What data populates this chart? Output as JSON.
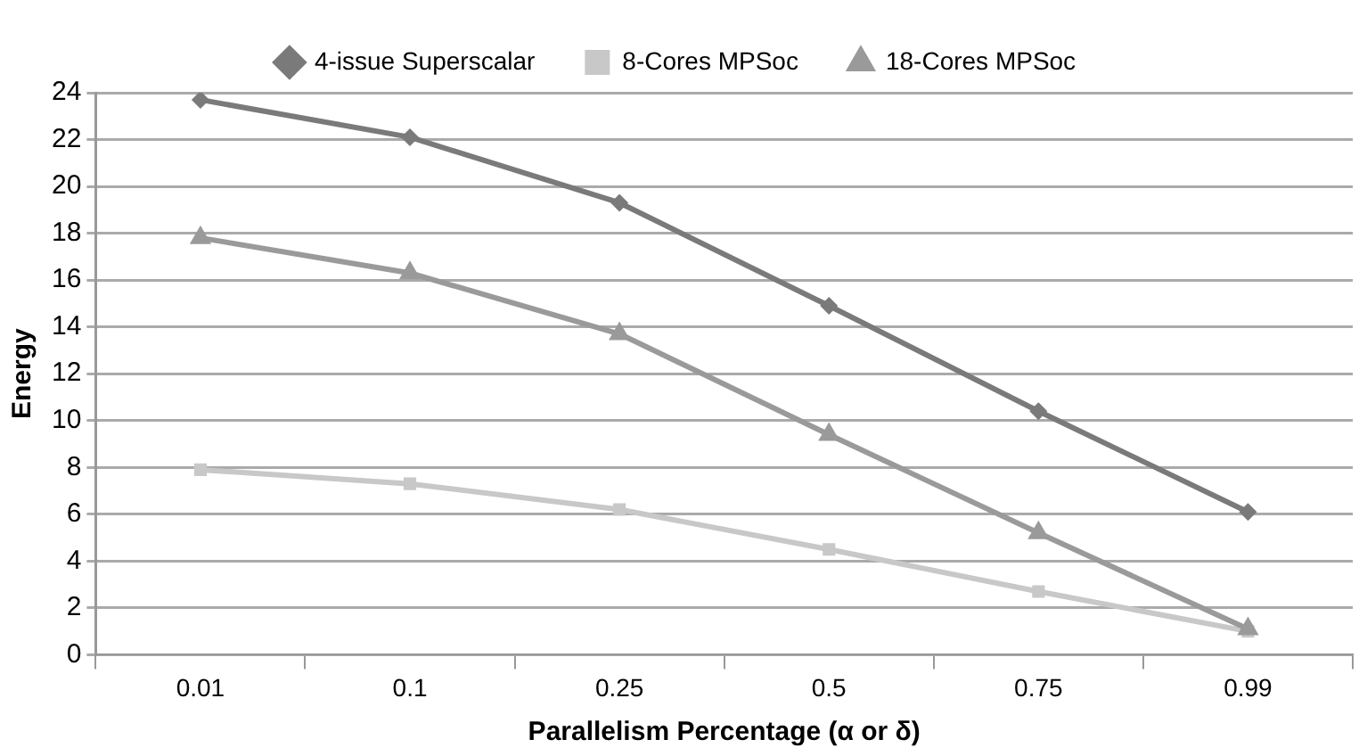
{
  "chart_data": {
    "type": "line",
    "xlabel": "Parallelism Percentage (α or δ)",
    "ylabel": "Energy",
    "categories": [
      "0.01",
      "0.1",
      "0.25",
      "0.5",
      "0.75",
      "0.99"
    ],
    "series": [
      {
        "name": "4-issue Superscalar",
        "color": "#7a7a7a",
        "marker": "diamond",
        "values": [
          23.7,
          22.1,
          19.3,
          14.9,
          10.4,
          6.1
        ]
      },
      {
        "name": "8-Cores MPSoc",
        "color": "#c8c8c8",
        "marker": "square",
        "values": [
          7.9,
          7.3,
          6.2,
          4.5,
          2.7,
          1.0
        ]
      },
      {
        "name": "18-Cores MPSoc",
        "color": "#9a9a9a",
        "marker": "triangle",
        "values": [
          17.8,
          16.3,
          13.7,
          9.4,
          5.2,
          1.1
        ]
      }
    ],
    "ylim": [
      0,
      24
    ],
    "yticks": [
      0,
      2,
      4,
      6,
      8,
      10,
      12,
      14,
      16,
      18,
      20,
      22,
      24
    ],
    "grid": "y",
    "legend": "top",
    "line_style": "solid"
  }
}
